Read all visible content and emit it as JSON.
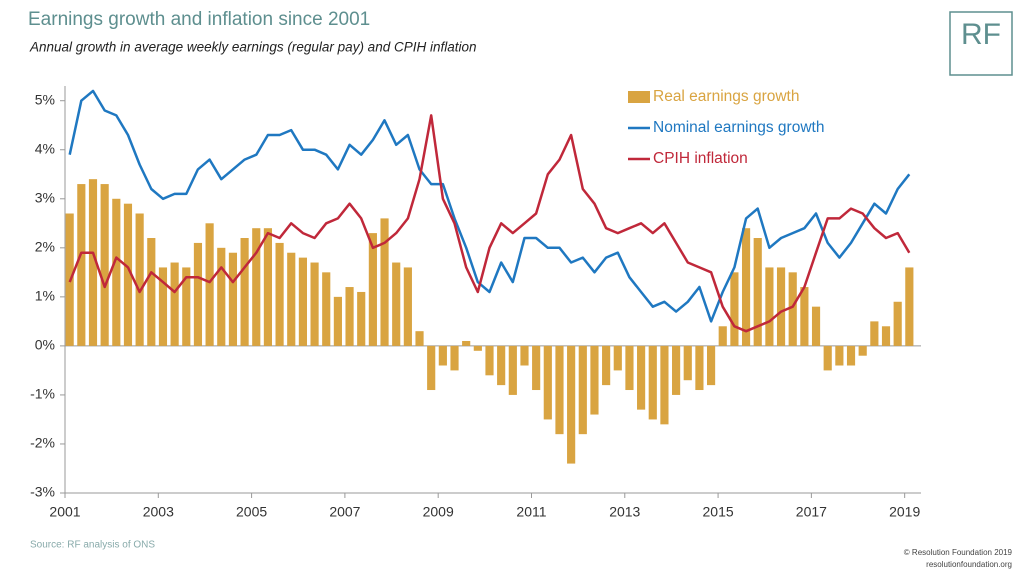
{
  "chart_data": {
    "type": "bar-line",
    "title": "Earnings growth and inflation since 2001",
    "subtitle": "Annual growth in average weekly earnings (regular pay) and CPIH inflation",
    "logo": "RF",
    "source": "Source: RF analysis of ONS",
    "copyright": "© Resolution Foundation 2019",
    "website": "resolutionfoundation.org",
    "x": [
      2001.1,
      2001.35,
      2001.6,
      2001.85,
      2002.1,
      2002.35,
      2002.6,
      2002.85,
      2003.1,
      2003.35,
      2003.6,
      2003.85,
      2004.1,
      2004.35,
      2004.6,
      2004.85,
      2005.1,
      2005.35,
      2005.6,
      2005.85,
      2006.1,
      2006.35,
      2006.6,
      2006.85,
      2007.1,
      2007.35,
      2007.6,
      2007.85,
      2008.1,
      2008.35,
      2008.6,
      2008.85,
      2009.1,
      2009.35,
      2009.6,
      2009.85,
      2010.1,
      2010.35,
      2010.6,
      2010.85,
      2011.1,
      2011.35,
      2011.6,
      2011.85,
      2012.1,
      2012.35,
      2012.6,
      2012.85,
      2013.1,
      2013.35,
      2013.6,
      2013.85,
      2014.1,
      2014.35,
      2014.6,
      2014.85,
      2015.1,
      2015.35,
      2015.6,
      2015.85,
      2016.1,
      2016.35,
      2016.6,
      2016.85,
      2017.1,
      2017.35,
      2017.6,
      2017.85,
      2018.1,
      2018.35,
      2018.6,
      2018.85,
      2019.1
    ],
    "series": [
      {
        "name": "Real earnings growth",
        "type": "bar",
        "color": "#d9a441",
        "values": [
          2.7,
          3.3,
          3.4,
          3.3,
          3.0,
          2.9,
          2.7,
          2.2,
          1.6,
          1.7,
          1.6,
          2.1,
          2.5,
          2.0,
          1.9,
          2.2,
          2.4,
          2.4,
          2.1,
          1.9,
          1.8,
          1.7,
          1.5,
          1.0,
          1.2,
          1.1,
          2.3,
          2.6,
          1.7,
          1.6,
          0.3,
          -0.9,
          -0.4,
          -0.5,
          0.1,
          -0.1,
          -0.6,
          -0.8,
          -1.0,
          -0.4,
          -0.9,
          -1.5,
          -1.8,
          -2.4,
          -1.8,
          -1.4,
          -0.8,
          -0.5,
          -0.9,
          -1.3,
          -1.5,
          -1.6,
          -1.0,
          -0.7,
          -0.9,
          -0.8,
          0.4,
          1.5,
          2.4,
          2.2,
          1.6,
          1.6,
          1.5,
          1.2,
          0.8,
          -0.5,
          -0.4,
          -0.4,
          -0.2,
          0.5,
          0.4,
          0.9,
          1.6
        ]
      },
      {
        "name": "Nominal earnings growth",
        "type": "line",
        "color": "#1f78c1",
        "values": [
          3.9,
          5.0,
          5.2,
          4.8,
          4.7,
          4.3,
          3.7,
          3.2,
          3.0,
          3.1,
          3.1,
          3.6,
          3.8,
          3.4,
          3.6,
          3.8,
          3.9,
          4.3,
          4.3,
          4.4,
          4.0,
          4.0,
          3.9,
          3.6,
          4.1,
          3.9,
          4.2,
          4.6,
          4.1,
          4.3,
          3.6,
          3.3,
          3.3,
          2.6,
          2.0,
          1.3,
          1.1,
          1.7,
          1.3,
          2.2,
          2.2,
          2.0,
          2.0,
          1.7,
          1.8,
          1.5,
          1.8,
          1.9,
          1.4,
          1.1,
          0.8,
          0.9,
          0.7,
          0.9,
          1.2,
          0.5,
          1.1,
          1.6,
          2.6,
          2.8,
          2.0,
          2.2,
          2.3,
          2.4,
          2.7,
          2.1,
          1.8,
          2.1,
          2.5,
          2.9,
          2.7,
          3.2,
          3.5
        ]
      },
      {
        "name": "CPIH inflation",
        "type": "line",
        "color": "#c0283a",
        "values": [
          1.3,
          1.9,
          1.9,
          1.2,
          1.8,
          1.6,
          1.1,
          1.5,
          1.3,
          1.1,
          1.4,
          1.4,
          1.3,
          1.6,
          1.3,
          1.6,
          1.9,
          2.3,
          2.2,
          2.5,
          2.3,
          2.2,
          2.5,
          2.6,
          2.9,
          2.6,
          2.0,
          2.1,
          2.3,
          2.6,
          3.4,
          4.7,
          3.0,
          2.5,
          1.6,
          1.1,
          2.0,
          2.5,
          2.3,
          2.5,
          2.7,
          3.5,
          3.8,
          4.3,
          3.2,
          2.9,
          2.4,
          2.3,
          2.4,
          2.5,
          2.3,
          2.5,
          2.1,
          1.7,
          1.6,
          1.5,
          0.8,
          0.4,
          0.3,
          0.4,
          0.5,
          0.7,
          0.8,
          1.2,
          1.9,
          2.6,
          2.6,
          2.8,
          2.7,
          2.4,
          2.2,
          2.3,
          1.9
        ]
      }
    ],
    "xlim": [
      2001,
      2019.35
    ],
    "xticks": [
      2001,
      2003,
      2005,
      2007,
      2009,
      2011,
      2013,
      2015,
      2017,
      2019
    ],
    "ylim": [
      -3,
      5.3
    ],
    "yticks": [
      {
        "value": -3,
        "label": "-3%"
      },
      {
        "value": -2,
        "label": "-2%"
      },
      {
        "value": -1,
        "label": "-1%"
      },
      {
        "value": 0,
        "label": "0%"
      },
      {
        "value": 1,
        "label": "1%"
      },
      {
        "value": 2,
        "label": "2%"
      },
      {
        "value": 3,
        "label": "3%"
      },
      {
        "value": 4,
        "label": "4%"
      },
      {
        "value": 5,
        "label": "5%"
      }
    ],
    "legend": "top-right"
  }
}
